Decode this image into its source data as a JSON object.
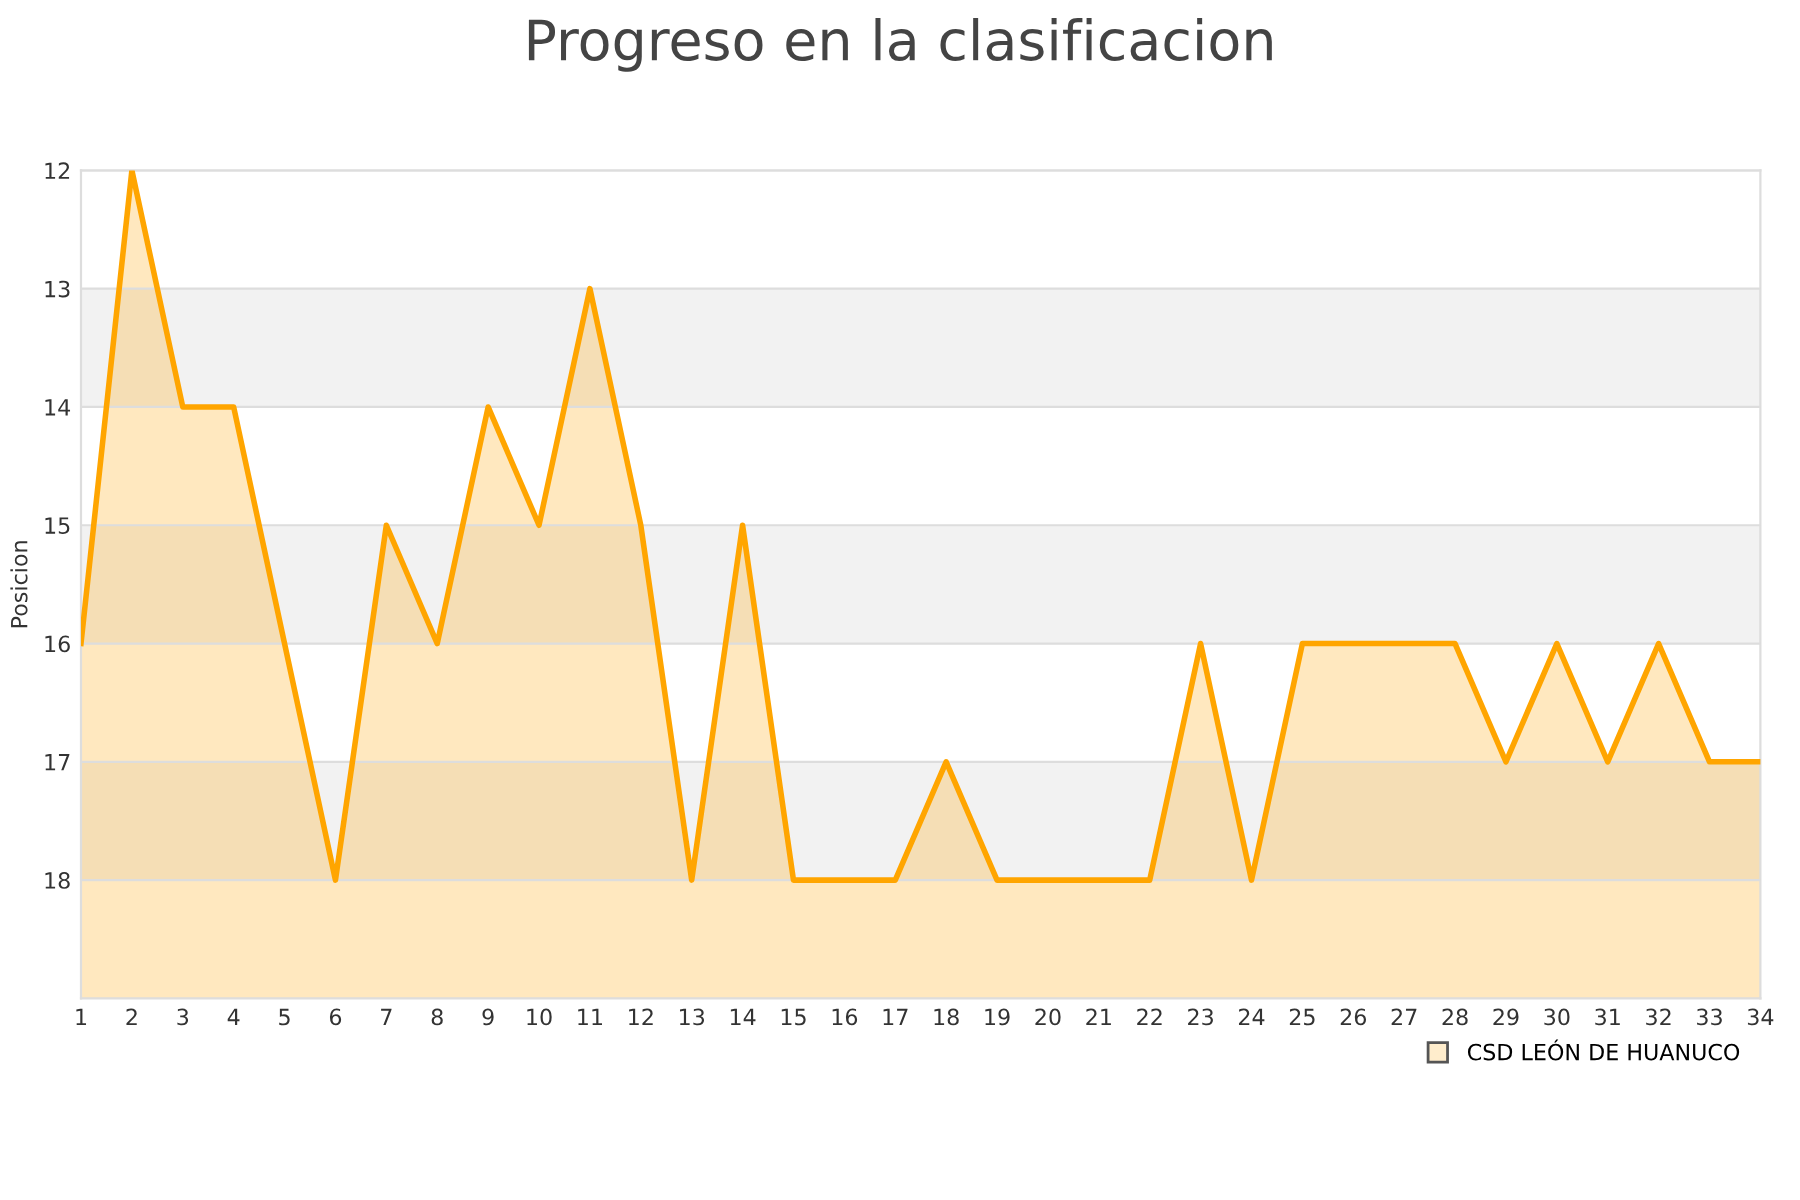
{
  "chart_data": {
    "type": "area",
    "title": "Progreso en la clasificacion",
    "ylabel": "Posicion",
    "x": [
      1,
      2,
      3,
      4,
      5,
      6,
      7,
      8,
      9,
      10,
      11,
      12,
      13,
      14,
      15,
      16,
      17,
      18,
      19,
      20,
      21,
      22,
      23,
      24,
      25,
      26,
      27,
      28,
      29,
      30,
      31,
      32,
      33,
      34
    ],
    "series": [
      {
        "name": "CSD LEÓN DE HUANUCO",
        "color": "#ffa500",
        "values": [
          16,
          12,
          14,
          14,
          16,
          18,
          15,
          16,
          14,
          15,
          13,
          15,
          18,
          15,
          18,
          18,
          18,
          17,
          18,
          18,
          18,
          18,
          16,
          18,
          16,
          16,
          16,
          16,
          17,
          16,
          17,
          16,
          17,
          17
        ]
      }
    ],
    "xlim": [
      1,
      34
    ],
    "xticks": [
      1,
      2,
      3,
      4,
      5,
      6,
      7,
      8,
      9,
      10,
      11,
      12,
      13,
      14,
      15,
      16,
      17,
      18,
      19,
      20,
      21,
      22,
      23,
      24,
      25,
      26,
      27,
      28,
      29,
      30,
      31,
      32,
      33,
      34
    ],
    "ylim": [
      19,
      12
    ],
    "yticks": [
      12,
      13,
      14,
      15,
      16,
      17,
      18
    ],
    "bands": [
      {
        "axis": "y",
        "from": 13,
        "to": 14,
        "color": "#f2f2f2"
      },
      {
        "axis": "y",
        "from": 15,
        "to": 16,
        "color": "#f2f2f2"
      },
      {
        "axis": "y",
        "from": 17,
        "to": 18,
        "color": "#f2f2f2"
      }
    ],
    "grid": "y",
    "legend": "bottom right",
    "marker": "none",
    "line_style": "solid"
  }
}
